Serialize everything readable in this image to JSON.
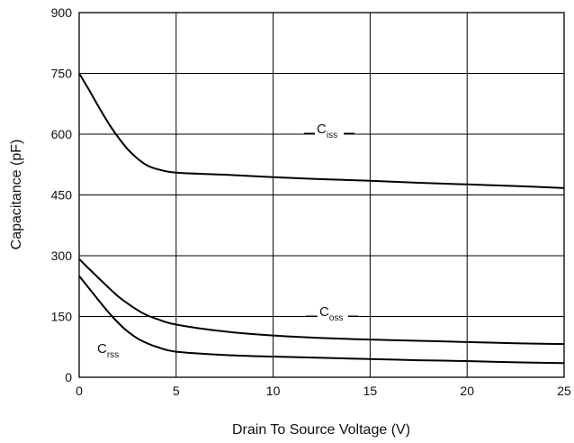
{
  "chart_data": {
    "type": "line",
    "title": "",
    "xlabel": "Drain To Source Voltage (V)",
    "ylabel": "Capacitance (pF)",
    "xlim": [
      0,
      25
    ],
    "ylim": [
      0,
      900
    ],
    "xticks": [
      "0",
      "5",
      "10",
      "15",
      "20",
      "25"
    ],
    "yticks": [
      "0",
      "150",
      "300",
      "450",
      "600",
      "750",
      "900"
    ],
    "grid": true,
    "series": [
      {
        "name": "C_iss",
        "label_main": "C",
        "label_sub": "iss",
        "x": [
          0,
          0.5,
          1,
          1.5,
          2,
          2.5,
          3,
          3.5,
          4,
          5,
          7.5,
          10,
          12.5,
          15,
          17.5,
          20,
          22.5,
          25
        ],
        "y": [
          750,
          710,
          668,
          628,
          593,
          563,
          540,
          523,
          514,
          505,
          500,
          494,
          489,
          485,
          480,
          476,
          472,
          467
        ]
      },
      {
        "name": "C_oss",
        "label_main": "C",
        "label_sub": "oss",
        "x": [
          0,
          0.5,
          1,
          1.5,
          2,
          2.5,
          3,
          3.5,
          4,
          5,
          7.5,
          10,
          12.5,
          15,
          17.5,
          20,
          22.5,
          25
        ],
        "y": [
          292,
          268,
          245,
          222,
          200,
          182,
          166,
          153,
          144,
          130,
          113,
          103,
          97,
          93,
          90,
          87,
          84,
          82
        ]
      },
      {
        "name": "C_rss",
        "label_main": "C",
        "label_sub": "rss",
        "x": [
          0,
          0.5,
          1,
          1.5,
          2,
          2.5,
          3,
          3.5,
          4,
          5,
          7.5,
          10,
          12.5,
          15,
          17.5,
          20,
          22.5,
          25
        ],
        "y": [
          250,
          220,
          190,
          161,
          135,
          113,
          96,
          84,
          75,
          63,
          55,
          51,
          48,
          45,
          42,
          40,
          37,
          35
        ]
      }
    ]
  }
}
